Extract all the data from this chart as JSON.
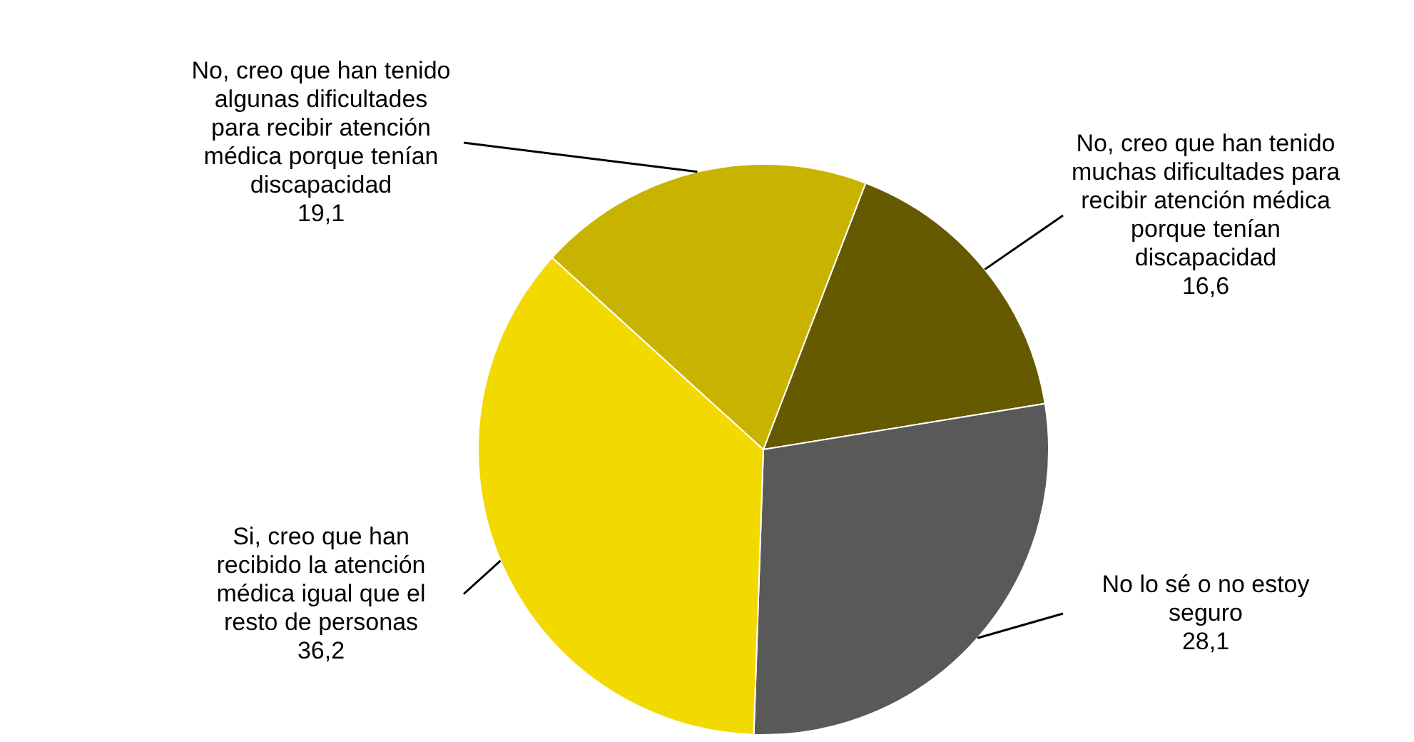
{
  "chart_data": {
    "type": "pie",
    "categories": [
      "No, creo que han tenido muchas dificultades para recibir atención médica porque tenían discapacidad",
      "No lo sé o no estoy seguro",
      "Si, creo que han recibido la atención médica igual que el resto de personas",
      "No, creo que han tenido algunas dificultades para recibir atención médica porque tenían discapacidad"
    ],
    "values": [
      16.6,
      28.1,
      36.2,
      19.1
    ],
    "value_labels": [
      "16,6",
      "28,1",
      "36,2",
      "19,1"
    ],
    "colors": [
      "#655a00",
      "#595959",
      "#f2d900",
      "#c8b400"
    ],
    "legend": false
  }
}
